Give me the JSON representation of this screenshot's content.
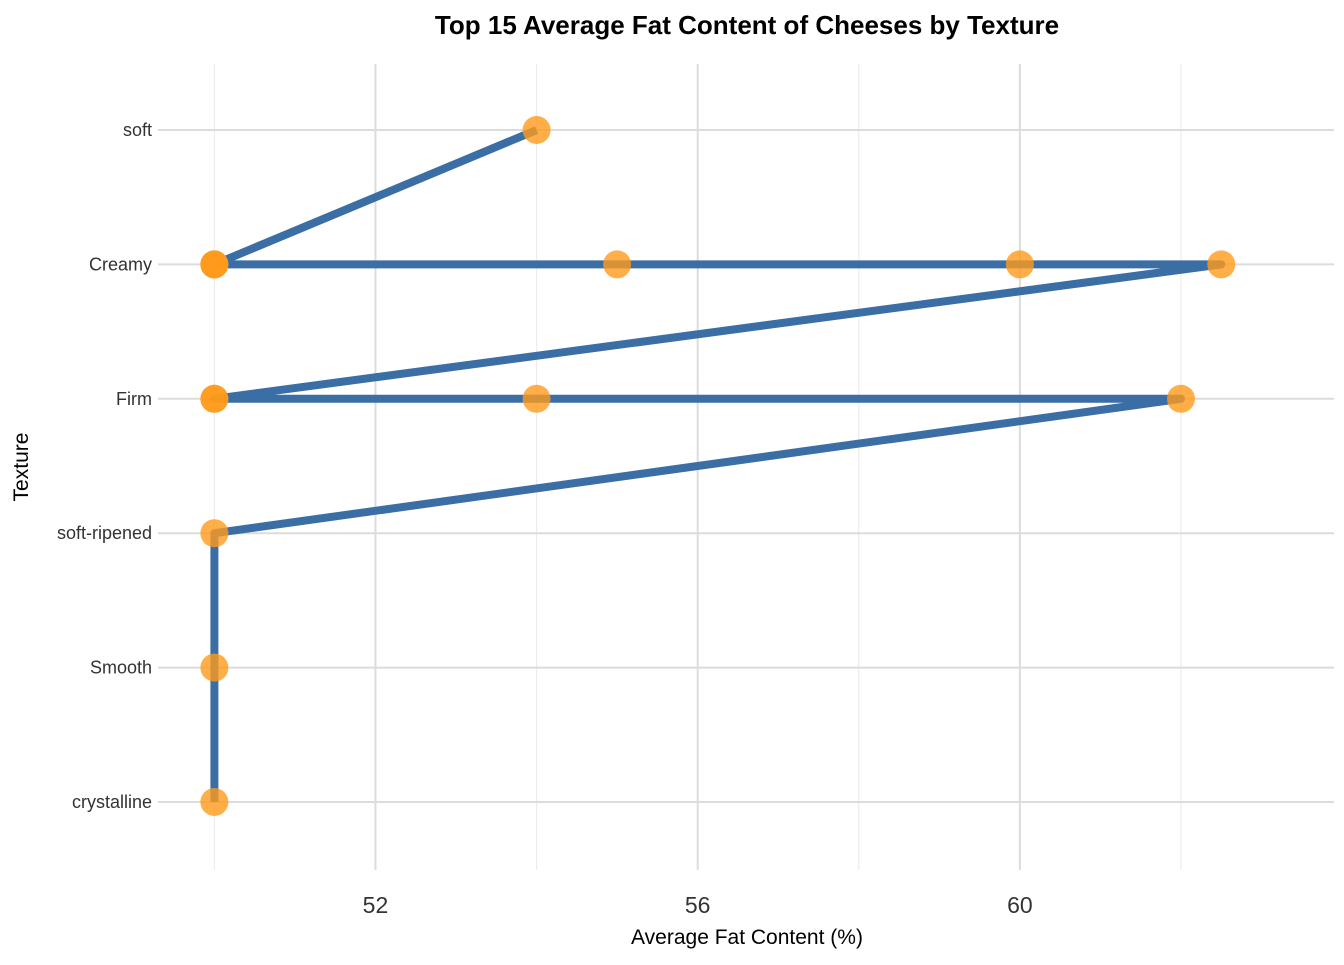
{
  "chart_data": {
    "type": "line",
    "title": "Top 15 Average Fat Content of Cheeses by Texture",
    "xlabel": "Average Fat Content (%)",
    "ylabel": "Texture",
    "categories": [
      "crystalline",
      "Smooth",
      "soft-ripened",
      "Firm",
      "Creamy",
      "soft"
    ],
    "xlim": [
      49.3,
      63.9
    ],
    "x_major_ticks": [
      52,
      56,
      60
    ],
    "x_tick_labels": [
      "52",
      "56",
      "60"
    ],
    "x_minor_ticks": [
      50,
      54,
      58,
      62
    ],
    "grid": true,
    "series": [
      {
        "points": [
          {
            "x": 50,
            "y": "crystalline"
          },
          {
            "x": 50,
            "y": "Smooth"
          },
          {
            "x": 50,
            "y": "soft-ripened"
          },
          {
            "x": 62,
            "y": "Firm"
          },
          {
            "x": 54,
            "y": "Firm"
          },
          {
            "x": 50,
            "y": "Firm"
          },
          {
            "x": 50,
            "y": "Firm"
          },
          {
            "x": 62.5,
            "y": "Creamy"
          },
          {
            "x": 60,
            "y": "Creamy"
          },
          {
            "x": 55,
            "y": "Creamy"
          },
          {
            "x": 50,
            "y": "Creamy"
          },
          {
            "x": 50,
            "y": "Creamy"
          },
          {
            "x": 50,
            "y": "Creamy"
          },
          {
            "x": 54,
            "y": "soft"
          }
        ]
      }
    ],
    "colors": {
      "line": "#3a6ea5",
      "points": "#ff9a1a",
      "grid_major": "#dcdcdc",
      "grid_minor": "#ececec",
      "tick_text": "#333333"
    }
  }
}
